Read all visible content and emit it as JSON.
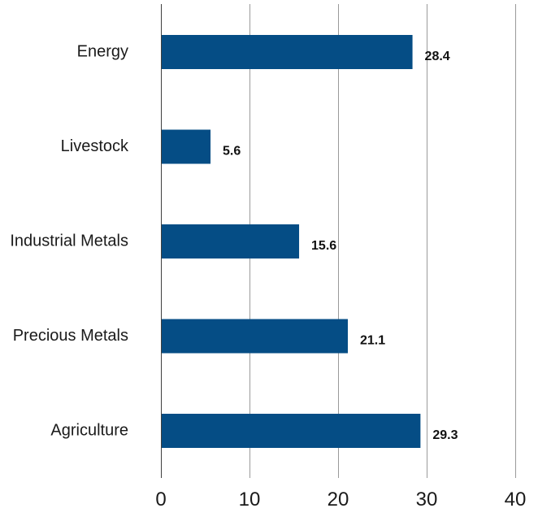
{
  "chart_data": {
    "type": "bar",
    "orientation": "horizontal",
    "categories": [
      "Energy",
      "Livestock",
      "Industrial Metals",
      "Precious Metals",
      "Agriculture"
    ],
    "values": [
      28.4,
      5.6,
      15.6,
      21.1,
      29.3
    ],
    "value_labels": [
      "28.4",
      "5.6",
      "15.6",
      "21.1",
      "29.3"
    ],
    "xlim": [
      0,
      40
    ],
    "x_ticks": [
      0,
      10,
      20,
      30,
      40
    ],
    "x_tick_labels": [
      "0",
      "10",
      "20",
      "30",
      "40"
    ],
    "grid": "vertical",
    "legend": "none",
    "bar_color": "#054d85"
  }
}
